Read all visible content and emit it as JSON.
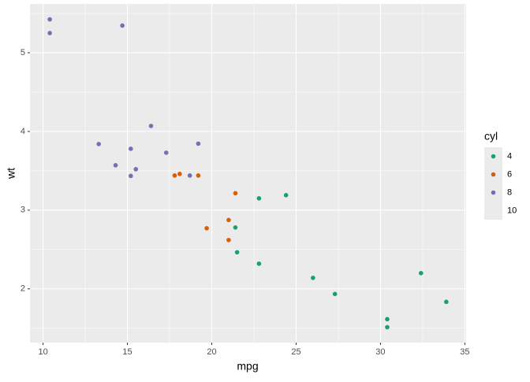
{
  "chart_data": {
    "type": "scatter",
    "x_label": "mpg",
    "y_label": "wt",
    "legend_title": "cyl",
    "legend_position": "right",
    "grid": true,
    "xlim": [
      9.225,
      35.075
    ],
    "ylim": [
      1.317,
      5.62
    ],
    "xticks": [
      10,
      15,
      20,
      25,
      30,
      35
    ],
    "yticks": [
      2,
      3,
      4,
      5
    ],
    "series": [
      {
        "name": "4",
        "color": "#1b9e77",
        "x": [
          22.8,
          24.4,
          22.8,
          32.4,
          30.4,
          33.9,
          21.5,
          27.3,
          26,
          30.4,
          21.4
        ],
        "values": [
          2.32,
          3.19,
          3.15,
          2.2,
          1.615,
          1.835,
          2.465,
          1.935,
          2.14,
          1.513,
          2.78
        ]
      },
      {
        "name": "6",
        "color": "#d95f02",
        "x": [
          21,
          21,
          21.4,
          18.1,
          19.2,
          17.8,
          19.7
        ],
        "values": [
          2.62,
          2.875,
          3.215,
          3.46,
          3.44,
          3.44,
          2.77
        ]
      },
      {
        "name": "8",
        "color": "#7570b3",
        "x": [
          18.7,
          14.3,
          16.4,
          17.3,
          15.2,
          10.4,
          10.4,
          14.7,
          15.5,
          15.2,
          13.3,
          19.2
        ],
        "values": [
          3.44,
          3.57,
          4.07,
          3.73,
          3.78,
          5.25,
          5.424,
          5.345,
          3.52,
          3.435,
          3.84,
          3.845
        ]
      },
      {
        "name": "10",
        "x": [],
        "values": []
      }
    ]
  }
}
